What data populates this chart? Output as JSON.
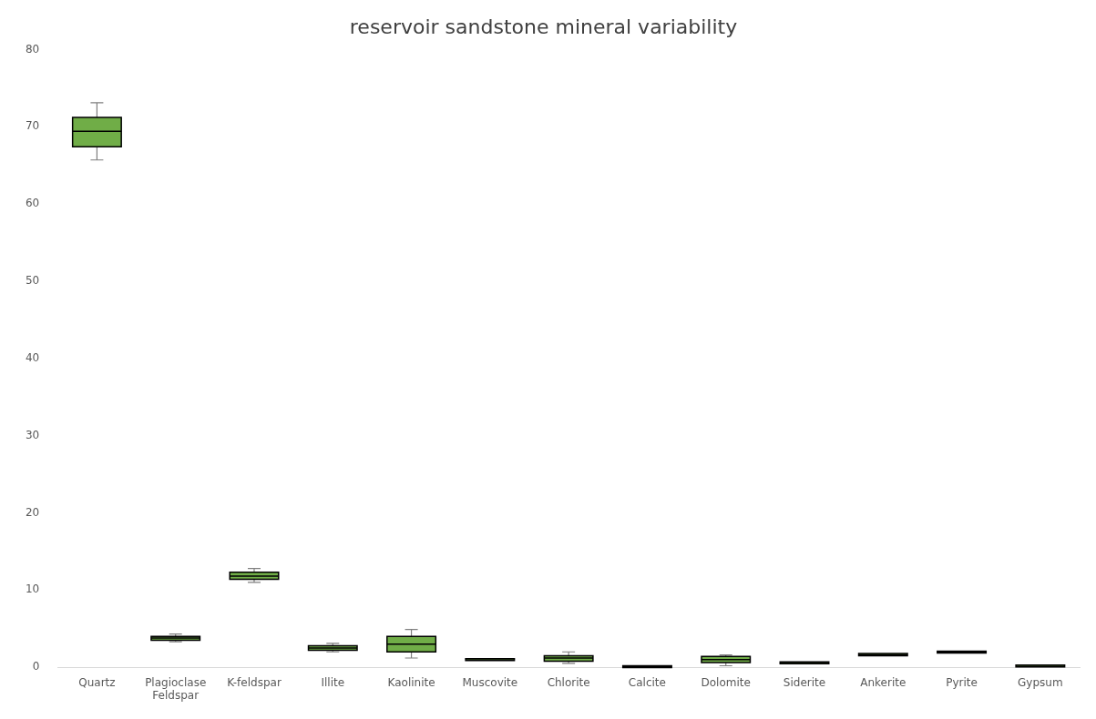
{
  "chart_data": {
    "type": "box",
    "title": "reservoir sandstone mineral variability",
    "categories": [
      "Quartz",
      "Plagioclase Feldspar",
      "K-feldspar",
      "Illite",
      "Kaolinite",
      "Muscovite",
      "Chlorite",
      "Calcite",
      "Dolomite",
      "Siderite",
      "Ankerite",
      "Pyrite",
      "Gypsum"
    ],
    "color": "#70ad47",
    "boxes": [
      {
        "low": 65.7,
        "q1": 67.4,
        "median": 69.4,
        "q3": 71.2,
        "high": 73.1
      },
      {
        "low": 3.3,
        "q1": 3.5,
        "median": 3.8,
        "q3": 4.0,
        "high": 4.3
      },
      {
        "low": 11.0,
        "q1": 11.4,
        "median": 11.8,
        "q3": 12.3,
        "high": 12.8
      },
      {
        "low": 2.0,
        "q1": 2.2,
        "median": 2.5,
        "q3": 2.8,
        "high": 3.1
      },
      {
        "low": 1.2,
        "q1": 2.0,
        "median": 3.0,
        "q3": 4.0,
        "high": 4.9
      },
      {
        "low": 1.1,
        "q1": 1.1,
        "median": 1.1,
        "q3": 1.1,
        "high": 1.1
      },
      {
        "low": 0.5,
        "q1": 0.8,
        "median": 1.2,
        "q3": 1.5,
        "high": 2.0
      },
      {
        "low": 0.1,
        "q1": 0.1,
        "median": 0.1,
        "q3": 0.2,
        "high": 0.2
      },
      {
        "low": 0.2,
        "q1": 0.6,
        "median": 1.0,
        "q3": 1.4,
        "high": 1.6
      },
      {
        "low": 0.5,
        "q1": 0.5,
        "median": 0.6,
        "q3": 0.7,
        "high": 0.7
      },
      {
        "low": 1.5,
        "q1": 1.5,
        "median": 1.6,
        "q3": 1.8,
        "high": 1.8
      },
      {
        "low": 1.9,
        "q1": 1.9,
        "median": 2.0,
        "q3": 2.1,
        "high": 2.1
      },
      {
        "low": 0.3,
        "q1": 0.3,
        "median": 0.3,
        "q3": 0.3,
        "high": 0.3
      }
    ],
    "ylim": [
      0,
      80
    ],
    "yticks": [
      0,
      10,
      20,
      30,
      40,
      50,
      60,
      70,
      80
    ],
    "grid": false,
    "legend": false
  }
}
